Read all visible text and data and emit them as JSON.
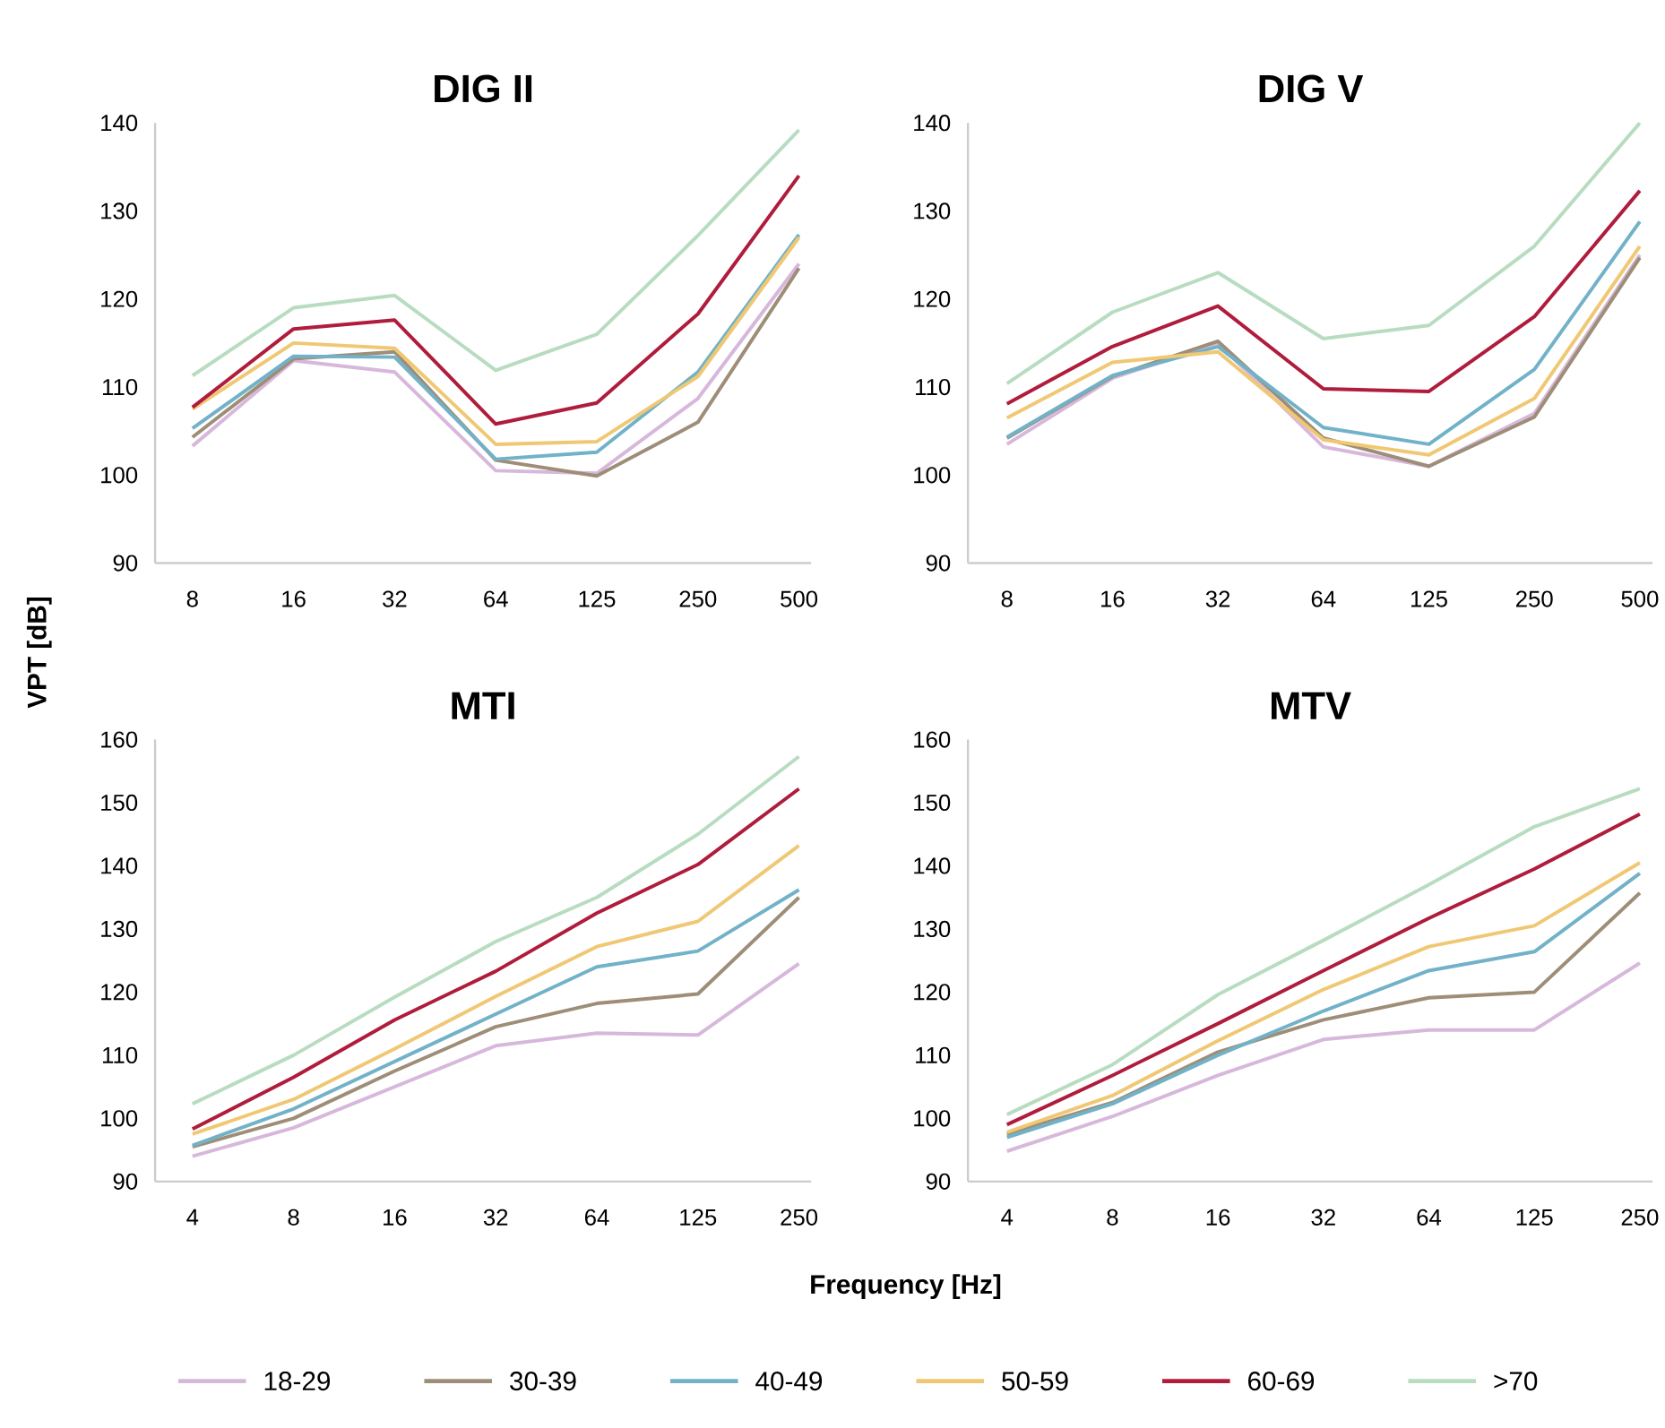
{
  "chart_data": [
    {
      "type": "line",
      "title": "DIG II",
      "ylabel": "VPT [dB]",
      "categories": [
        "8",
        "16",
        "32",
        "64",
        "125",
        "250",
        "500"
      ],
      "ylim": [
        90,
        140
      ],
      "yticks": [
        90,
        100,
        110,
        120,
        130,
        140
      ],
      "legend": "bottom",
      "grid": false,
      "marker": "none",
      "series": [
        {
          "name": "18-29",
          "color": "#d7b8dc",
          "values": [
            103.3,
            113,
            111.7,
            100.5,
            100.2,
            108.7,
            124
          ]
        },
        {
          "name": "30-39",
          "color": "#9e8e78",
          "values": [
            104.3,
            113.2,
            114,
            101.7,
            99.9,
            106,
            123.5
          ]
        },
        {
          "name": "40-49",
          "color": "#72b2c8",
          "values": [
            105.3,
            113.5,
            113.4,
            101.8,
            102.6,
            111.7,
            127.3
          ]
        },
        {
          "name": "50-59",
          "color": "#f0c874",
          "values": [
            107.5,
            115,
            114.4,
            103.5,
            103.8,
            111.2,
            127
          ]
        },
        {
          "name": "60-69",
          "color": "#b01c3c",
          "values": [
            107.7,
            116.6,
            117.6,
            105.8,
            108.2,
            118.3,
            134
          ]
        },
        {
          "name": ">70",
          "color": "#b8dcc0",
          "values": [
            111.3,
            119,
            120.4,
            111.9,
            116,
            127.2,
            139.2
          ]
        }
      ]
    },
    {
      "type": "line",
      "title": "DIG V",
      "categories": [
        "8",
        "16",
        "32",
        "64",
        "125",
        "250",
        "500"
      ],
      "ylim": [
        90,
        140
      ],
      "yticks": [
        90,
        100,
        110,
        120,
        130,
        140
      ],
      "grid": false,
      "marker": "none",
      "series": [
        {
          "color": "#d7b8dc",
          "values": [
            103.5,
            111,
            115,
            103.2,
            101,
            107,
            125
          ]
        },
        {
          "color": "#9e8e78",
          "values": [
            104.2,
            111.2,
            115.2,
            104.2,
            101,
            106.6,
            124.7
          ]
        },
        {
          "color": "#72b2c8",
          "values": [
            104.3,
            111.3,
            114.6,
            105.4,
            103.5,
            112,
            128.8
          ]
        },
        {
          "color": "#f0c874",
          "values": [
            106.5,
            112.8,
            114,
            104,
            102.3,
            108.7,
            126
          ]
        },
        {
          "color": "#b01c3c",
          "values": [
            108.1,
            114.6,
            119.2,
            109.8,
            109.5,
            118,
            132.3
          ]
        },
        {
          "color": "#b8dcc0",
          "values": [
            110.4,
            118.5,
            123,
            115.5,
            117,
            126,
            140
          ]
        }
      ]
    },
    {
      "type": "line",
      "title": "MTI",
      "xlabel": "Frequency [Hz]",
      "categories": [
        "4",
        "8",
        "16",
        "32",
        "64",
        "125",
        "250"
      ],
      "ylim": [
        90,
        160
      ],
      "yticks": [
        90,
        100,
        110,
        120,
        130,
        140,
        150,
        160
      ],
      "grid": false,
      "marker": "none",
      "series": [
        {
          "color": "#d7b8dc",
          "values": [
            94,
            98.5,
            105,
            111.5,
            113.5,
            113.2,
            124.5
          ]
        },
        {
          "color": "#9e8e78",
          "values": [
            95.5,
            100,
            107.5,
            114.5,
            118.2,
            119.7,
            135
          ]
        },
        {
          "color": "#72b2c8",
          "values": [
            95.7,
            101.5,
            109,
            116.5,
            124,
            126.5,
            136.2
          ]
        },
        {
          "color": "#f0c874",
          "values": [
            97.5,
            103,
            111,
            119.3,
            127.2,
            131.2,
            143.2
          ]
        },
        {
          "color": "#b01c3c",
          "values": [
            98.3,
            106.5,
            115.6,
            123.3,
            132.5,
            140.2,
            152.2
          ]
        },
        {
          "color": "#b8dcc0",
          "values": [
            102.3,
            110,
            119.2,
            128,
            135,
            145,
            157.3
          ]
        }
      ]
    },
    {
      "type": "line",
      "title": "MTV",
      "categories": [
        "4",
        "8",
        "16",
        "32",
        "64",
        "125",
        "250"
      ],
      "ylim": [
        90,
        160
      ],
      "yticks": [
        90,
        100,
        110,
        120,
        130,
        140,
        150,
        160
      ],
      "grid": false,
      "marker": "none",
      "series": [
        {
          "color": "#d7b8dc",
          "values": [
            94.8,
            100.3,
            106.8,
            112.5,
            114,
            114,
            124.6
          ]
        },
        {
          "color": "#9e8e78",
          "values": [
            97.5,
            102.5,
            110.5,
            115.6,
            119.1,
            120,
            135.7
          ]
        },
        {
          "color": "#72b2c8",
          "values": [
            97,
            102.3,
            110,
            117,
            123.4,
            126.4,
            138.8
          ]
        },
        {
          "color": "#f0c874",
          "values": [
            97.8,
            103.6,
            112.3,
            120.4,
            127.2,
            130.5,
            140.5
          ]
        },
        {
          "color": "#b01c3c",
          "values": [
            99,
            106.8,
            115,
            123.4,
            131.7,
            139.5,
            148.2
          ]
        },
        {
          "color": "#b8dcc0",
          "values": [
            100.6,
            108.5,
            119.6,
            128.2,
            137,
            146.2,
            152.2
          ]
        }
      ]
    }
  ]
}
